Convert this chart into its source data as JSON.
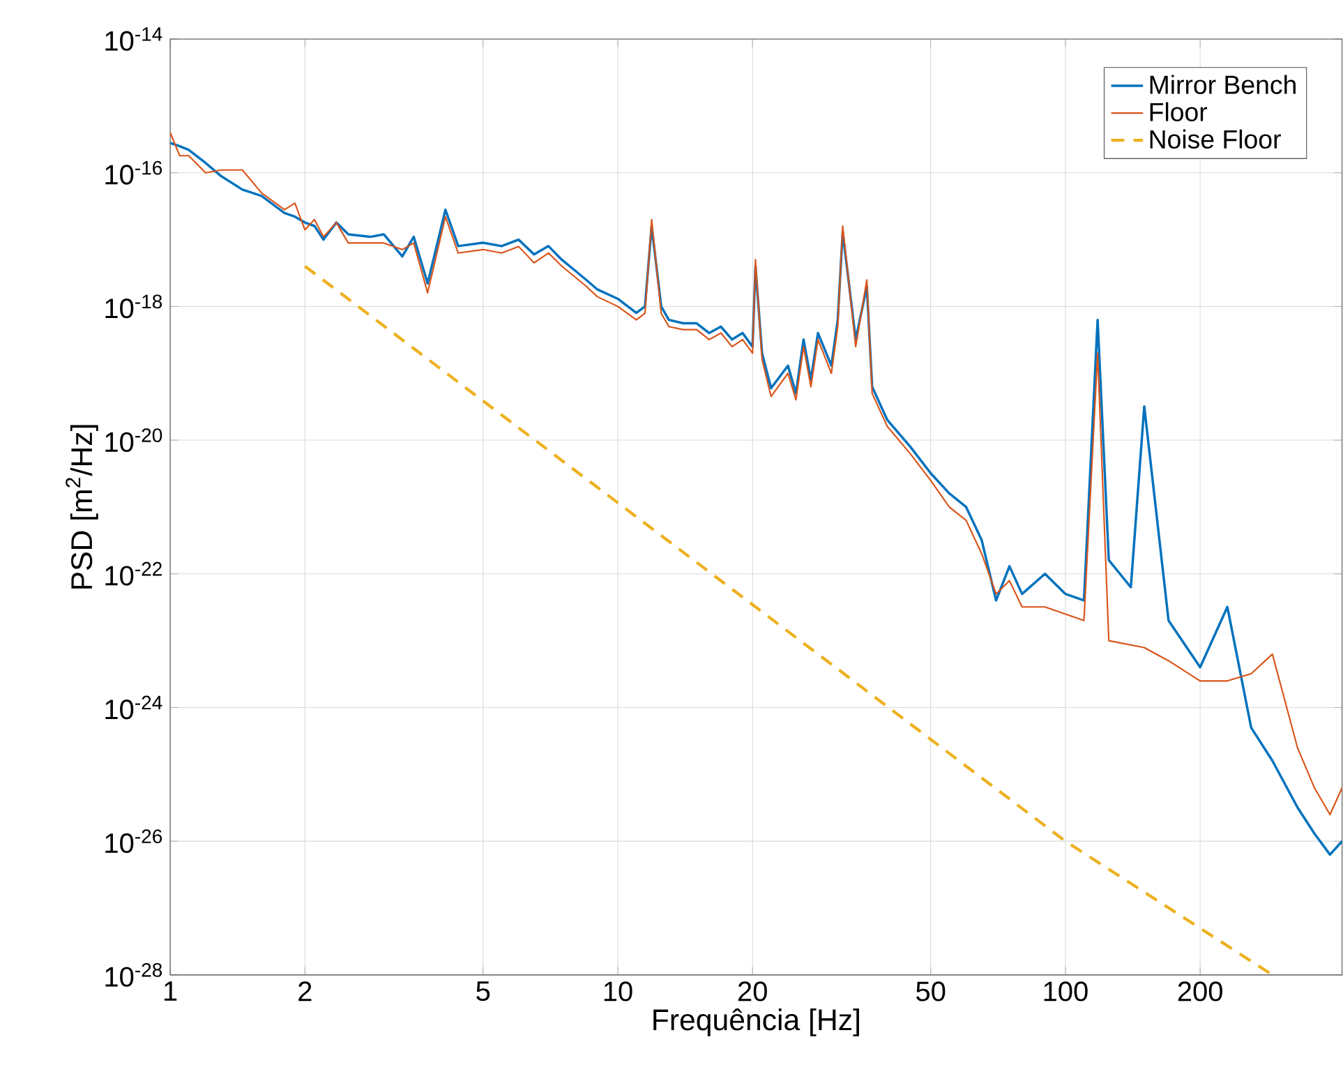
{
  "chart_data": {
    "type": "line",
    "xlabel": "Frequência [Hz]",
    "ylabel": "PSD [m$^{2}$/Hz]",
    "log": "xy",
    "grid": true,
    "legend": "top right",
    "xlim": [
      1,
      415
    ],
    "ylim": [
      1e-28,
      1e-14
    ],
    "xticks": [
      1,
      2,
      5,
      10,
      20,
      50,
      100,
      200
    ],
    "yticks": [
      {
        "value": 1e-28,
        "label": "10$^{-28}$"
      },
      {
        "value": 1e-26,
        "label": "10$^{-26}$"
      },
      {
        "value": 1e-24,
        "label": "10$^{-24}$"
      },
      {
        "value": 1e-22,
        "label": "10$^{-22}$"
      },
      {
        "value": 1e-20,
        "label": "10$^{-20}$"
      },
      {
        "value": 1e-18,
        "label": "10$^{-18}$"
      },
      {
        "value": 1e-16,
        "label": "10$^{-16}$"
      },
      {
        "value": 1e-14,
        "label": "10$^{-14}$"
      }
    ],
    "series": [
      {
        "name": "Mirror Bench",
        "color": "#0072bd",
        "line_style": "solid",
        "x": [
          1,
          1.05,
          1.1,
          1.2,
          1.3,
          1.45,
          1.6,
          1.8,
          1.9,
          2,
          2.1,
          2.2,
          2.35,
          2.5,
          2.8,
          3,
          3.3,
          3.5,
          3.76,
          4.12,
          4.4,
          5,
          5.5,
          6,
          6.5,
          7,
          7.5,
          8,
          8.5,
          9,
          10,
          11,
          11.5,
          11.9,
          12.5,
          13,
          14,
          15,
          16,
          17,
          18,
          19,
          20,
          20.3,
          21,
          22,
          24,
          25,
          26,
          27,
          28,
          30,
          31,
          31.8,
          34,
          36,
          37,
          40,
          45,
          50,
          55,
          60,
          65,
          70,
          75,
          80,
          90,
          100,
          110,
          118,
          125,
          140,
          150,
          170,
          200,
          230,
          260,
          290,
          330,
          360,
          390,
          415
        ],
        "values": [
          2.8e-16,
          2.5e-16,
          2.2e-16,
          1.4e-16,
          8.9e-17,
          5.6e-17,
          4.5e-17,
          2.5e-17,
          2.2e-17,
          1.8e-17,
          1.6e-17,
          1e-17,
          1.8e-17,
          1.2e-17,
          1.1e-17,
          1.2e-17,
          5.6e-18,
          1.1e-17,
          2.2e-18,
          2.8e-17,
          8e-18,
          9e-18,
          8e-18,
          1e-17,
          6e-18,
          8e-18,
          5e-18,
          3.5e-18,
          2.5e-18,
          1.8e-18,
          1.3e-18,
          8e-19,
          1e-18,
          1.6e-17,
          1e-18,
          6.3e-19,
          5.6e-19,
          5.6e-19,
          4e-19,
          5e-19,
          3.2e-19,
          4e-19,
          2.5e-19,
          4e-18,
          2e-19,
          6e-20,
          1.3e-19,
          5e-20,
          3.2e-19,
          8e-20,
          4e-19,
          1.3e-19,
          6.3e-19,
          1.3e-17,
          3.2e-19,
          2e-18,
          6.3e-20,
          2e-20,
          8e-21,
          3.2e-21,
          1.6e-21,
          1e-21,
          3.2e-22,
          4e-23,
          1.3e-22,
          5e-23,
          1e-22,
          5e-23,
          4e-23,
          6.3e-19,
          1.6e-22,
          6.3e-23,
          3.2e-20,
          2e-23,
          4e-24,
          3.2e-23,
          5e-25,
          1.6e-25,
          3.2e-26,
          1.3e-26,
          6.3e-27,
          1e-26
        ]
      },
      {
        "name": "Floor",
        "color": "#d95319",
        "line_style": "solid",
        "x": [
          1,
          1.05,
          1.1,
          1.2,
          1.3,
          1.45,
          1.6,
          1.8,
          1.9,
          2,
          2.1,
          2.2,
          2.35,
          2.5,
          2.8,
          3,
          3.3,
          3.5,
          3.76,
          4.12,
          4.4,
          5,
          5.5,
          6,
          6.5,
          7,
          7.5,
          8,
          8.5,
          9,
          10,
          11,
          11.5,
          11.9,
          12.5,
          13,
          14,
          15,
          16,
          17,
          18,
          19,
          20,
          20.3,
          21,
          22,
          24,
          25,
          26,
          27,
          28,
          30,
          31,
          31.8,
          34,
          36,
          37,
          40,
          45,
          50,
          55,
          60,
          65,
          70,
          75,
          80,
          90,
          100,
          110,
          118,
          125,
          150,
          170,
          200,
          230,
          260,
          290,
          330,
          360,
          390,
          415
        ],
        "values": [
          4e-16,
          1.8e-16,
          1.8e-16,
          1e-16,
          1.1e-16,
          1.1e-16,
          5e-17,
          2.8e-17,
          3.5e-17,
          1.4e-17,
          2e-17,
          1.1e-17,
          1.8e-17,
          8.9e-18,
          8.9e-18,
          8.9e-18,
          7.1e-18,
          8.9e-18,
          1.6e-18,
          2.2e-17,
          6.3e-18,
          7.1e-18,
          6.3e-18,
          7.9e-18,
          4.5e-18,
          6.3e-18,
          4e-18,
          2.8e-18,
          2e-18,
          1.4e-18,
          1e-18,
          6.3e-19,
          7.9e-19,
          2e-17,
          7.9e-19,
          5e-19,
          4.5e-19,
          4.5e-19,
          3.2e-19,
          4e-19,
          2.5e-19,
          3.2e-19,
          2e-19,
          5e-18,
          1.6e-19,
          4.5e-20,
          1e-19,
          4e-20,
          2.5e-19,
          6.3e-20,
          3.2e-19,
          1e-19,
          5e-19,
          1.6e-17,
          2.5e-19,
          2.5e-18,
          5e-20,
          1.6e-20,
          6.3e-21,
          2.5e-21,
          1e-21,
          6.3e-22,
          2e-22,
          5e-23,
          7.9e-23,
          3.2e-23,
          3.2e-23,
          2.5e-23,
          2e-23,
          2e-19,
          1e-23,
          7.9e-24,
          5e-24,
          2.5e-24,
          2.5e-24,
          3.2e-24,
          6.3e-24,
          2.5e-25,
          6.3e-26,
          2.5e-26,
          6.3e-26
        ]
      },
      {
        "name": "Noise Floor",
        "color": "#edb120",
        "line_style": "dashed",
        "x": [
          2,
          100,
          290
        ],
        "values": [
          4e-18,
          1e-26,
          1e-28
        ]
      }
    ]
  }
}
